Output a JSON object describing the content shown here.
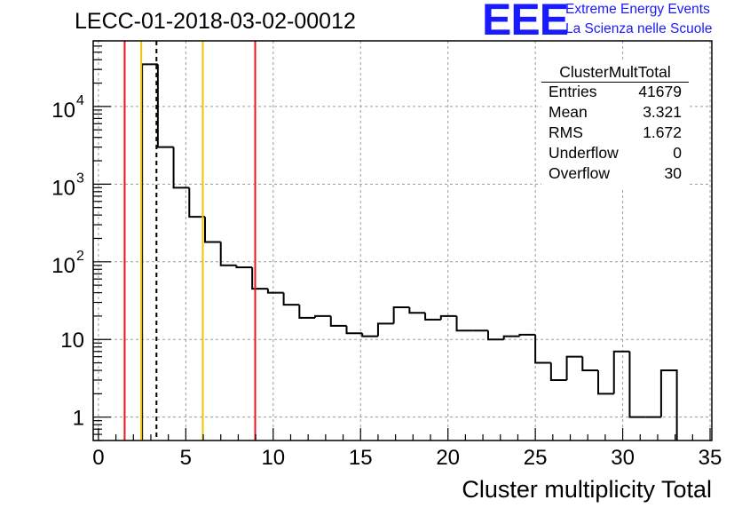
{
  "header": {
    "run_title": "LECC-01-2018-03-02-00012"
  },
  "logo": {
    "mark": "EEE",
    "line1": "Extreme Energy Events",
    "line2": "La Scienza nelle Scuole"
  },
  "stats_box": {
    "title": "ClusterMultTotal",
    "rows": [
      {
        "key": "Entries",
        "value": "41679"
      },
      {
        "key": "Mean",
        "value": "3.321"
      },
      {
        "key": "RMS",
        "value": "1.672"
      },
      {
        "key": "Underflow",
        "value": "0"
      },
      {
        "key": "Overflow",
        "value": "30"
      }
    ]
  },
  "colors": {
    "histogram": "#000000",
    "grid": "#9a9a9a",
    "red_line": "#e8141e",
    "yellow_line": "#f2c300",
    "logo_blue": "#1a1aff"
  },
  "chart_data": {
    "type": "bar",
    "style": "step histogram",
    "title": "",
    "xlabel": "Cluster multiplicity Total",
    "ylabel": "",
    "xlim": [
      -0.3,
      35.1
    ],
    "ylim": [
      0.5,
      70000
    ],
    "y_scale": "log",
    "grid": true,
    "x_ticks": [
      0,
      5,
      10,
      15,
      20,
      25,
      30,
      35
    ],
    "x_tick_labels": [
      "0",
      "5",
      "10",
      "15",
      "20",
      "25",
      "30",
      "35"
    ],
    "y_ticks": [
      1,
      10,
      100,
      1000,
      10000
    ],
    "y_tick_labels": [
      {
        "base": "1",
        "exp": ""
      },
      {
        "base": "10",
        "exp": ""
      },
      {
        "base": "10",
        "exp": "2"
      },
      {
        "base": "10",
        "exp": "3"
      },
      {
        "base": "10",
        "exp": "4"
      }
    ],
    "bin_width": 0.9,
    "bins": [
      {
        "x0": 2.5,
        "value": 35000
      },
      {
        "x0": 3.4,
        "value": 3000
      },
      {
        "x0": 4.3,
        "value": 900
      },
      {
        "x0": 5.2,
        "value": 380
      },
      {
        "x0": 6.1,
        "value": 180
      },
      {
        "x0": 7.0,
        "value": 90
      },
      {
        "x0": 7.9,
        "value": 85
      },
      {
        "x0": 8.8,
        "value": 45
      },
      {
        "x0": 9.7,
        "value": 40
      },
      {
        "x0": 10.6,
        "value": 28
      },
      {
        "x0": 11.5,
        "value": 19
      },
      {
        "x0": 12.4,
        "value": 20
      },
      {
        "x0": 13.3,
        "value": 15
      },
      {
        "x0": 14.2,
        "value": 12
      },
      {
        "x0": 15.1,
        "value": 11
      },
      {
        "x0": 16.0,
        "value": 16
      },
      {
        "x0": 16.9,
        "value": 26
      },
      {
        "x0": 17.8,
        "value": 22
      },
      {
        "x0": 18.7,
        "value": 18
      },
      {
        "x0": 19.6,
        "value": 20
      },
      {
        "x0": 20.5,
        "value": 13
      },
      {
        "x0": 21.4,
        "value": 13
      },
      {
        "x0": 22.3,
        "value": 10
      },
      {
        "x0": 23.2,
        "value": 11
      },
      {
        "x0": 24.1,
        "value": 11.5
      },
      {
        "x0": 25.0,
        "value": 5
      },
      {
        "x0": 25.9,
        "value": 3
      },
      {
        "x0": 26.8,
        "value": 6
      },
      {
        "x0": 27.7,
        "value": 4
      },
      {
        "x0": 28.6,
        "value": 2
      },
      {
        "x0": 29.5,
        "value": 7
      },
      {
        "x0": 30.4,
        "value": 1
      },
      {
        "x0": 31.3,
        "value": 1
      },
      {
        "x0": 32.2,
        "value": 4
      }
    ],
    "vertical_markers": [
      {
        "x": 1.5,
        "color": "red",
        "style": "solid"
      },
      {
        "x": 2.45,
        "color": "yellow",
        "style": "solid"
      },
      {
        "x": 3.321,
        "color": "black",
        "style": "dashed"
      },
      {
        "x": 5.97,
        "color": "yellow",
        "style": "solid"
      },
      {
        "x": 8.97,
        "color": "red",
        "style": "solid"
      }
    ]
  }
}
